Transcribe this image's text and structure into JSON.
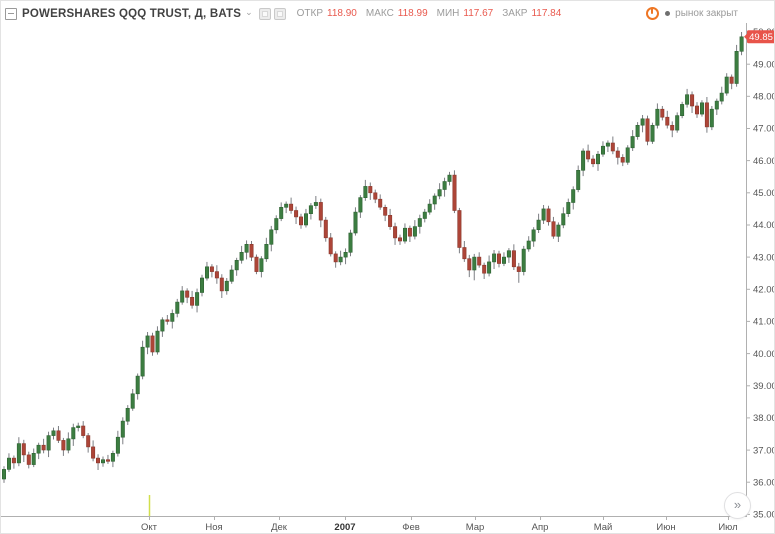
{
  "header": {
    "symbol_title": "POWERSHARES QQQ TRUST, Д, BATS",
    "dropdown_caret": "⌄",
    "ohlc_fields": [
      {
        "label": "ОТКР",
        "value": "118.90"
      },
      {
        "label": "МАКС",
        "value": "118.99"
      },
      {
        "label": "МИН",
        "value": "117.67"
      },
      {
        "label": "ЗАКР",
        "value": "117.84"
      }
    ],
    "market_status": {
      "text": "рынок закрыт"
    }
  },
  "controls": {
    "go_to_realtime": "»"
  },
  "price_axis": {
    "last_price": "49.85",
    "labels": [
      "50.00",
      "49.00",
      "48.00",
      "47.00",
      "46.00",
      "45.00",
      "44.00",
      "43.00",
      "42.00",
      "41.00",
      "40.00",
      "39.00",
      "38.00",
      "37.00",
      "36.00",
      "35.00"
    ]
  },
  "time_axis": {
    "labels": [
      {
        "text": "Окт",
        "x": 148
      },
      {
        "text": "Ноя",
        "x": 213
      },
      {
        "text": "Дек",
        "x": 278
      },
      {
        "text": "2007",
        "x": 344,
        "year": true
      },
      {
        "text": "Фев",
        "x": 410
      },
      {
        "text": "Мар",
        "x": 474
      },
      {
        "text": "Апр",
        "x": 539
      },
      {
        "text": "Май",
        "x": 602
      },
      {
        "text": "Июн",
        "x": 665
      },
      {
        "text": "Июл",
        "x": 727
      }
    ]
  },
  "colors": {
    "up_body": "#3c7d41",
    "up_border": "#2e6233",
    "down_body": "#ad4538",
    "down_border": "#8a372c",
    "wick": "#7c7e83",
    "axis_line": "#b0b0b0",
    "axis_text": "#555555",
    "badge_bg": "#e8544a",
    "badge_text": "#ffffff",
    "session_line": "#cddc39",
    "value_red": "#e9594e",
    "label_gray": "#9b9b9b",
    "year_text": "#333333"
  },
  "chart_data": {
    "type": "candlestick",
    "title": "POWERSHARES QQQ TRUST",
    "interval": "Д",
    "exchange": "BATS",
    "last_price": 49.85,
    "ylim": [
      35.0,
      50.0
    ],
    "grid": false,
    "plot": {
      "x0": 3,
      "dx": 4.95,
      "top": 22,
      "bottom": 515,
      "right": 745,
      "pmin": 34.95,
      "pmax": 50.28
    },
    "session_marker": {
      "x": 148,
      "y1": 494,
      "y2": 515
    },
    "columns": [
      "open",
      "high",
      "low",
      "close"
    ],
    "candles": [
      [
        36.1,
        36.5,
        35.98,
        36.4
      ],
      [
        36.4,
        36.9,
        36.32,
        36.75
      ],
      [
        36.75,
        36.83,
        36.42,
        36.6
      ],
      [
        36.6,
        37.4,
        36.5,
        37.2
      ],
      [
        37.2,
        37.32,
        36.63,
        36.85
      ],
      [
        36.85,
        36.95,
        36.43,
        36.55
      ],
      [
        36.55,
        37.05,
        36.47,
        36.9
      ],
      [
        36.9,
        37.23,
        36.72,
        37.15
      ],
      [
        37.15,
        37.35,
        36.9,
        37.0
      ],
      [
        37.0,
        37.57,
        36.78,
        37.45
      ],
      [
        37.45,
        37.7,
        37.33,
        37.6
      ],
      [
        37.6,
        37.75,
        37.22,
        37.3
      ],
      [
        37.3,
        37.38,
        36.82,
        37.0
      ],
      [
        37.0,
        37.55,
        36.9,
        37.35
      ],
      [
        37.35,
        37.82,
        37.13,
        37.7
      ],
      [
        37.7,
        37.85,
        37.58,
        37.75
      ],
      [
        37.75,
        37.9,
        37.37,
        37.45
      ],
      [
        37.45,
        37.53,
        36.92,
        37.1
      ],
      [
        37.1,
        37.3,
        36.65,
        36.75
      ],
      [
        36.75,
        36.87,
        36.38,
        36.6
      ],
      [
        36.6,
        36.8,
        36.48,
        36.7
      ],
      [
        36.7,
        36.85,
        36.57,
        36.65
      ],
      [
        36.65,
        36.98,
        36.47,
        36.9
      ],
      [
        36.9,
        37.6,
        36.8,
        37.4
      ],
      [
        37.4,
        38.02,
        37.18,
        37.9
      ],
      [
        37.9,
        38.4,
        37.78,
        38.3
      ],
      [
        38.3,
        38.9,
        38.22,
        38.75
      ],
      [
        38.75,
        39.38,
        38.57,
        39.3
      ],
      [
        39.3,
        40.4,
        39.2,
        40.2
      ],
      [
        40.2,
        40.67,
        39.98,
        40.55
      ],
      [
        40.55,
        40.65,
        39.93,
        40.05
      ],
      [
        40.05,
        40.85,
        39.97,
        40.7
      ],
      [
        40.7,
        41.13,
        40.52,
        41.05
      ],
      [
        41.05,
        41.2,
        40.9,
        41.0
      ],
      [
        41.0,
        41.37,
        40.78,
        41.25
      ],
      [
        41.25,
        41.7,
        41.13,
        41.6
      ],
      [
        41.6,
        42.1,
        41.52,
        41.95
      ],
      [
        41.95,
        42.03,
        41.57,
        41.75
      ],
      [
        41.75,
        41.95,
        41.4,
        41.5
      ],
      [
        41.5,
        42.02,
        41.28,
        41.9
      ],
      [
        41.9,
        42.45,
        41.78,
        42.35
      ],
      [
        42.35,
        42.85,
        42.27,
        42.7
      ],
      [
        42.7,
        42.78,
        42.37,
        42.55
      ],
      [
        42.55,
        42.75,
        42.17,
        42.35
      ],
      [
        42.35,
        42.47,
        41.73,
        41.95
      ],
      [
        41.95,
        42.35,
        41.83,
        42.25
      ],
      [
        42.25,
        42.75,
        42.17,
        42.6
      ],
      [
        42.6,
        42.98,
        42.42,
        42.9
      ],
      [
        42.9,
        43.35,
        42.8,
        43.15
      ],
      [
        43.15,
        43.52,
        42.93,
        43.4
      ],
      [
        43.4,
        43.5,
        42.88,
        43.0
      ],
      [
        43.0,
        43.08,
        42.47,
        42.55
      ],
      [
        42.55,
        43.03,
        42.37,
        42.95
      ],
      [
        42.95,
        43.6,
        42.85,
        43.4
      ],
      [
        43.4,
        43.97,
        43.18,
        43.85
      ],
      [
        43.85,
        44.3,
        43.73,
        44.2
      ],
      [
        44.2,
        44.7,
        44.12,
        44.55
      ],
      [
        44.55,
        44.73,
        44.37,
        44.65
      ],
      [
        44.65,
        44.85,
        44.35,
        44.45
      ],
      [
        44.45,
        44.57,
        44.03,
        44.25
      ],
      [
        44.25,
        44.35,
        43.88,
        44.0
      ],
      [
        44.0,
        44.5,
        43.92,
        44.35
      ],
      [
        44.35,
        44.68,
        44.17,
        44.6
      ],
      [
        44.6,
        44.9,
        44.5,
        44.7
      ],
      [
        44.7,
        44.82,
        43.93,
        44.15
      ],
      [
        44.15,
        44.25,
        43.48,
        43.6
      ],
      [
        43.6,
        43.75,
        43.02,
        43.1
      ],
      [
        43.1,
        43.18,
        42.67,
        42.85
      ],
      [
        42.85,
        43.2,
        42.75,
        43.0
      ],
      [
        43.0,
        43.27,
        42.78,
        43.15
      ],
      [
        43.15,
        43.85,
        43.03,
        43.75
      ],
      [
        43.75,
        44.55,
        43.67,
        44.4
      ],
      [
        44.4,
        44.93,
        44.22,
        44.85
      ],
      [
        44.85,
        45.4,
        44.75,
        45.2
      ],
      [
        45.2,
        45.32,
        44.78,
        45.0
      ],
      [
        45.0,
        45.1,
        44.68,
        44.8
      ],
      [
        44.8,
        44.95,
        44.47,
        44.55
      ],
      [
        44.55,
        44.63,
        44.12,
        44.3
      ],
      [
        44.3,
        44.5,
        43.85,
        43.95
      ],
      [
        43.95,
        44.07,
        43.38,
        43.6
      ],
      [
        43.6,
        43.7,
        43.38,
        43.5
      ],
      [
        43.5,
        44.05,
        43.42,
        43.9
      ],
      [
        43.9,
        43.98,
        43.47,
        43.65
      ],
      [
        43.65,
        44.15,
        43.55,
        43.95
      ],
      [
        43.95,
        44.32,
        43.73,
        44.2
      ],
      [
        44.2,
        44.5,
        44.08,
        44.4
      ],
      [
        44.4,
        44.8,
        44.32,
        44.65
      ],
      [
        44.65,
        44.98,
        44.47,
        44.9
      ],
      [
        44.9,
        45.3,
        44.8,
        45.1
      ],
      [
        45.1,
        45.47,
        44.88,
        45.35
      ],
      [
        45.35,
        45.65,
        45.23,
        45.55
      ],
      [
        45.55,
        45.7,
        44.37,
        44.45
      ],
      [
        44.45,
        44.53,
        43.12,
        43.3
      ],
      [
        43.3,
        43.5,
        42.85,
        42.95
      ],
      [
        42.95,
        43.07,
        42.38,
        42.6
      ],
      [
        42.6,
        43.1,
        42.28,
        43.0
      ],
      [
        43.0,
        43.15,
        42.67,
        42.75
      ],
      [
        42.75,
        42.83,
        42.32,
        42.5
      ],
      [
        42.5,
        43.05,
        42.4,
        42.85
      ],
      [
        42.85,
        43.22,
        42.63,
        43.1
      ],
      [
        43.1,
        43.2,
        42.68,
        42.8
      ],
      [
        42.8,
        43.15,
        42.72,
        43.0
      ],
      [
        43.0,
        43.28,
        42.82,
        43.2
      ],
      [
        43.2,
        43.4,
        42.6,
        42.7
      ],
      [
        42.7,
        42.82,
        42.2,
        42.55
      ],
      [
        42.55,
        43.35,
        42.43,
        43.25
      ],
      [
        43.25,
        43.65,
        43.17,
        43.5
      ],
      [
        43.5,
        43.93,
        43.32,
        43.85
      ],
      [
        43.85,
        44.35,
        43.75,
        44.15
      ],
      [
        44.15,
        44.62,
        44.03,
        44.5
      ],
      [
        44.5,
        44.6,
        43.98,
        44.1
      ],
      [
        44.1,
        44.25,
        43.57,
        43.65
      ],
      [
        43.65,
        44.08,
        43.47,
        44.0
      ],
      [
        44.0,
        44.55,
        43.9,
        44.35
      ],
      [
        44.35,
        44.82,
        44.25,
        44.7
      ],
      [
        44.7,
        45.2,
        44.48,
        45.1
      ],
      [
        45.1,
        45.85,
        45.02,
        45.7
      ],
      [
        45.7,
        46.38,
        45.52,
        46.3
      ],
      [
        46.3,
        46.5,
        45.95,
        46.05
      ],
      [
        46.05,
        46.17,
        45.8,
        45.9
      ],
      [
        45.9,
        46.3,
        45.68,
        46.2
      ],
      [
        46.2,
        46.6,
        46.12,
        46.45
      ],
      [
        46.45,
        46.63,
        46.27,
        46.55
      ],
      [
        46.55,
        46.75,
        46.2,
        46.3
      ],
      [
        46.3,
        46.42,
        45.88,
        46.1
      ],
      [
        46.1,
        46.2,
        45.83,
        45.95
      ],
      [
        45.95,
        46.48,
        45.87,
        46.4
      ],
      [
        46.4,
        46.95,
        46.3,
        46.75
      ],
      [
        46.75,
        47.2,
        46.65,
        47.1
      ],
      [
        47.1,
        47.42,
        46.88,
        47.3
      ],
      [
        47.3,
        47.4,
        46.48,
        46.6
      ],
      [
        46.6,
        47.18,
        46.52,
        47.1
      ],
      [
        47.1,
        47.78,
        47.0,
        47.6
      ],
      [
        47.6,
        47.7,
        47.25,
        47.35
      ],
      [
        47.35,
        47.55,
        47.0,
        47.1
      ],
      [
        47.1,
        47.22,
        46.73,
        46.95
      ],
      [
        46.95,
        47.5,
        46.87,
        47.4
      ],
      [
        47.4,
        47.83,
        47.32,
        47.75
      ],
      [
        47.75,
        48.23,
        47.65,
        48.05
      ],
      [
        48.05,
        48.15,
        47.48,
        47.7
      ],
      [
        47.7,
        47.82,
        47.33,
        47.45
      ],
      [
        47.45,
        47.88,
        47.37,
        47.8
      ],
      [
        47.8,
        47.98,
        46.87,
        47.05
      ],
      [
        47.05,
        47.7,
        46.95,
        47.6
      ],
      [
        47.6,
        47.93,
        47.42,
        47.85
      ],
      [
        47.85,
        48.3,
        47.75,
        48.1
      ],
      [
        48.1,
        48.72,
        48.02,
        48.6
      ],
      [
        48.6,
        48.68,
        48.22,
        48.4
      ],
      [
        48.4,
        49.6,
        48.3,
        49.4
      ],
      [
        49.4,
        50.0,
        49.28,
        49.85
      ]
    ]
  }
}
